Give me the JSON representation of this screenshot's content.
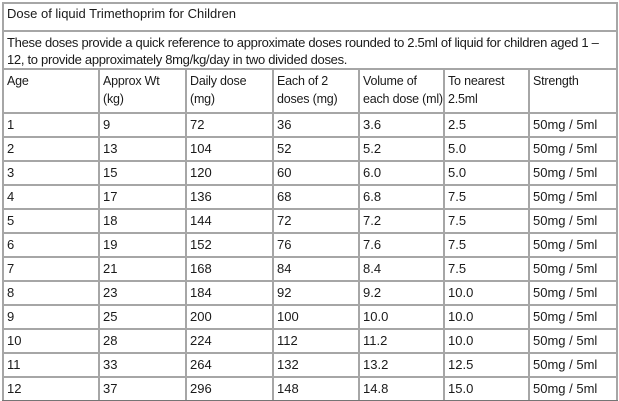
{
  "title": "Dose of liquid Trimethoprim for Children",
  "description": "These doses provide a quick reference to approximate doses rounded to 2.5ml of liquid for children aged 1 –\n12, to provide approximately 8mg/kg/day in two divided doses.",
  "table": {
    "keys": [
      "age",
      "approx-wt",
      "daily-dose",
      "each-of-2-doses",
      "volume-of-each-dose",
      "to-nearest",
      "strength"
    ],
    "headers": [
      "Age",
      "Approx Wt\n(kg)",
      "Daily dose\n(mg)",
      "Each of 2\ndoses (mg)",
      "Volume of\neach dose (ml)",
      "To nearest\n2.5ml",
      "Strength"
    ],
    "rows": [
      [
        "1",
        "9",
        "72",
        "36",
        "3.6",
        "2.5",
        "50mg / 5ml"
      ],
      [
        "2",
        "13",
        "104",
        "52",
        "5.2",
        "5.0",
        "50mg / 5ml"
      ],
      [
        "3",
        "15",
        "120",
        "60",
        "6.0",
        "5.0",
        "50mg / 5ml"
      ],
      [
        "4",
        "17",
        "136",
        "68",
        "6.8",
        "7.5",
        "50mg / 5ml"
      ],
      [
        "5",
        "18",
        "144",
        "72",
        "7.2",
        "7.5",
        "50mg / 5ml"
      ],
      [
        "6",
        "19",
        "152",
        "76",
        "7.6",
        "7.5",
        "50mg / 5ml"
      ],
      [
        "7",
        "21",
        "168",
        "84",
        "8.4",
        "7.5",
        "50mg / 5ml"
      ],
      [
        "8",
        "23",
        "184",
        "92",
        "9.2",
        "10.0",
        "50mg / 5ml"
      ],
      [
        "9",
        "25",
        "200",
        "100",
        "10.0",
        "10.0",
        "50mg / 5ml"
      ],
      [
        "10",
        "28",
        "224",
        "112",
        "11.2",
        "10.0",
        "50mg / 5ml"
      ],
      [
        "11",
        "33",
        "264",
        "132",
        "13.2",
        "12.5",
        "50mg / 5ml"
      ],
      [
        "12",
        "37",
        "296",
        "148",
        "14.8",
        "15.0",
        "50mg / 5ml"
      ]
    ]
  },
  "colors": {
    "background": "#ffffff",
    "text": "#1a1a1a",
    "inner_border": "#a6a6a6",
    "outer_border": "#8c8c8c"
  }
}
